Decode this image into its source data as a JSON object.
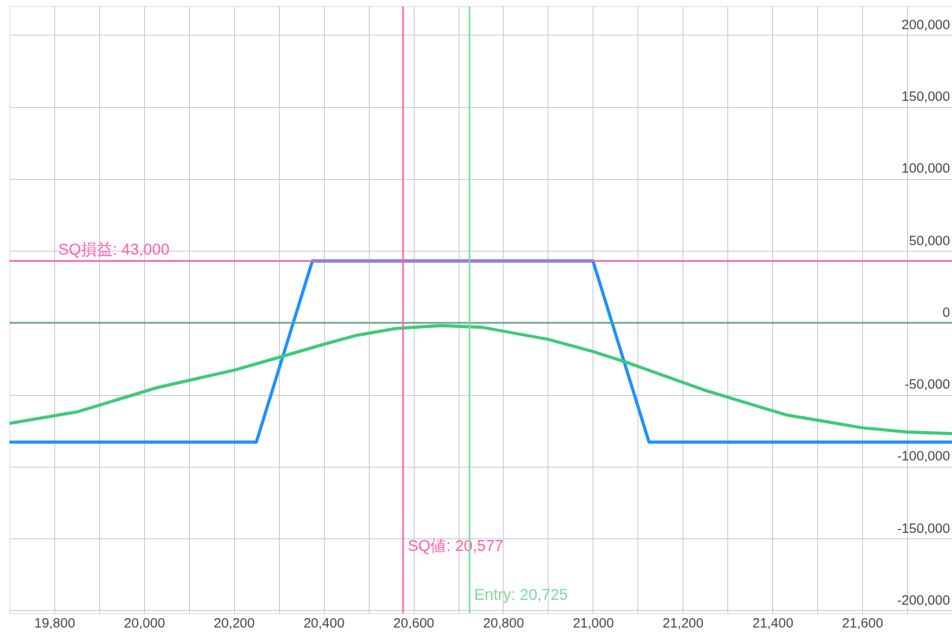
{
  "chart_data": {
    "type": "line",
    "xlim": [
      19700,
      21800
    ],
    "ylim": [
      -202000,
      220000
    ],
    "xticks": [
      {
        "value": 19800,
        "label": "19,800"
      },
      {
        "value": 19900,
        "label": null
      },
      {
        "value": 20000,
        "label": "20,000"
      },
      {
        "value": 20100,
        "label": null
      },
      {
        "value": 20200,
        "label": "20,200"
      },
      {
        "value": 20300,
        "label": null
      },
      {
        "value": 20400,
        "label": "20,400"
      },
      {
        "value": 20500,
        "label": null
      },
      {
        "value": 20600,
        "label": "20,600"
      },
      {
        "value": 20700,
        "label": null
      },
      {
        "value": 20800,
        "label": "20,800"
      },
      {
        "value": 20900,
        "label": null
      },
      {
        "value": 21000,
        "label": "21,000"
      },
      {
        "value": 21100,
        "label": null
      },
      {
        "value": 21200,
        "label": "21,200"
      },
      {
        "value": 21300,
        "label": null
      },
      {
        "value": 21400,
        "label": "21,400"
      },
      {
        "value": 21500,
        "label": null
      },
      {
        "value": 21600,
        "label": "21,600"
      },
      {
        "value": 21700,
        "label": null
      }
    ],
    "yticks": [
      {
        "value": -200000,
        "label": "-200,000"
      },
      {
        "value": -150000,
        "label": "-150,000"
      },
      {
        "value": -100000,
        "label": "-100,000"
      },
      {
        "value": -50000,
        "label": "-50,000"
      },
      0,
      {
        "value": 50000,
        "label": "50,000"
      },
      {
        "value": 100000,
        "label": "100,000"
      },
      {
        "value": 150000,
        "label": "150,000"
      },
      {
        "value": 200000,
        "label": "200,000"
      }
    ],
    "grid": true,
    "marker": "none",
    "line_style": "solid",
    "series": [
      {
        "color": "#1e90ff",
        "x": [
          19700,
          20250,
          20375,
          21000,
          21125,
          21800
        ],
        "values": [
          -83000,
          -83000,
          43000,
          43000,
          -83000,
          -83000
        ]
      },
      {
        "color": "#3ec97a",
        "x": [
          19700,
          19850,
          20030,
          20200,
          20290,
          20400,
          20470,
          20560,
          20660,
          20750,
          20900,
          21000,
          21080,
          21250,
          21430,
          21600,
          21700,
          21800
        ],
        "values": [
          -70000,
          -62000,
          -45000,
          -33000,
          -25000,
          -15000,
          -9000,
          -4000,
          -2000,
          -3000,
          -11500,
          -20000,
          -28000,
          -47000,
          -64000,
          -73000,
          -76000,
          -77000
        ]
      }
    ],
    "ref_lines": [
      {
        "axis": "y",
        "value": 0,
        "label": null,
        "color": "#5a9e7a"
      },
      {
        "axis": "y",
        "value": 43000,
        "label": "SQ損益: 43,000",
        "color": "#ff5fae"
      },
      {
        "axis": "x",
        "value": 20577,
        "label": "SQ値: 20,577",
        "color": "#ff5fae"
      },
      {
        "axis": "x",
        "value": 20725,
        "label": "Entry: 20,725",
        "color": "#7ed9a0"
      }
    ]
  }
}
